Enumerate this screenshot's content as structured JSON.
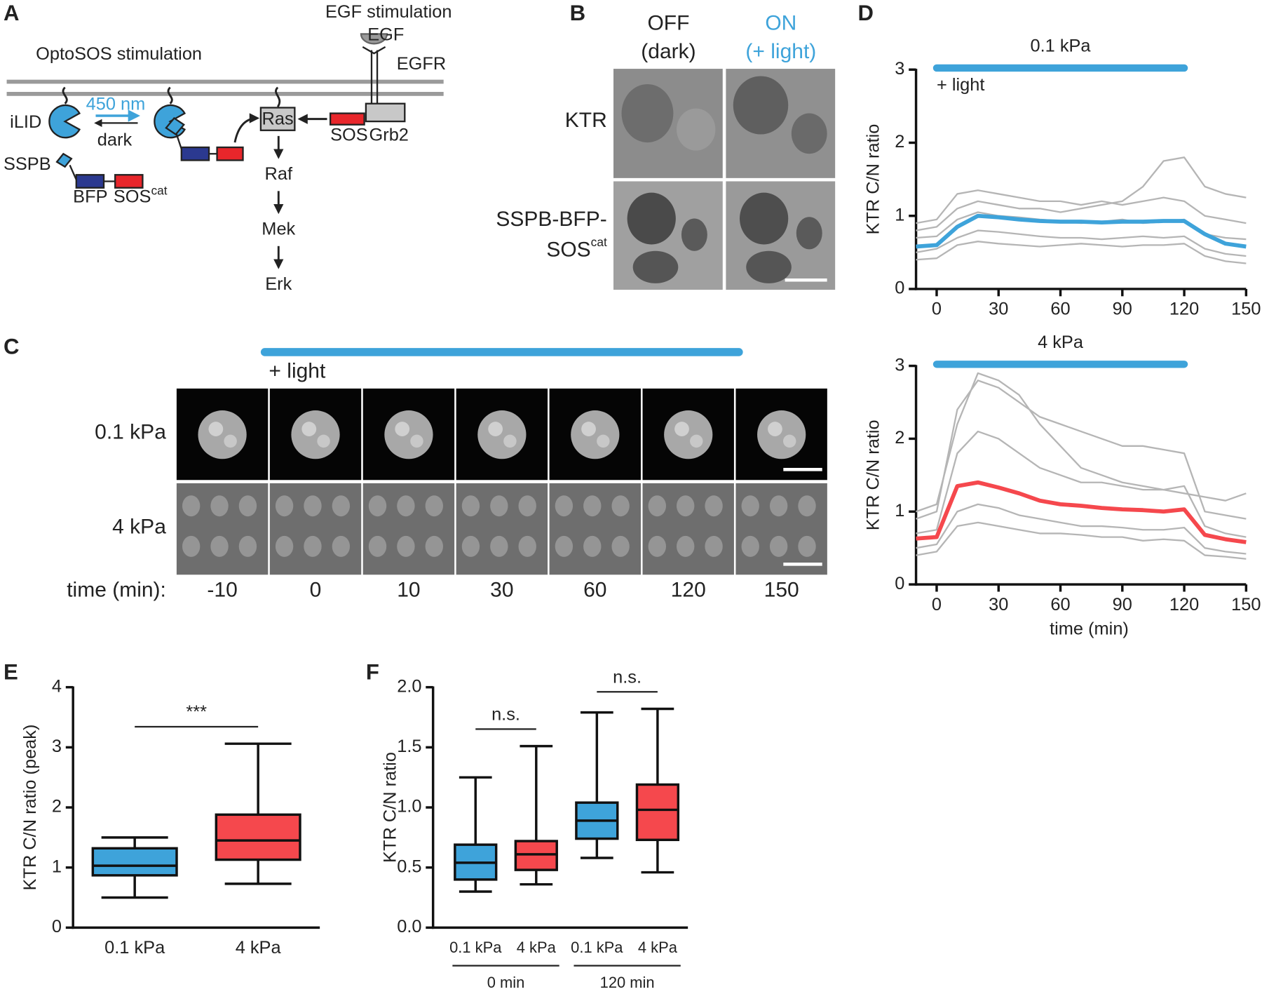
{
  "panel_labels": [
    "A",
    "B",
    "C",
    "D",
    "E",
    "F"
  ],
  "diagram": {
    "egf_stimulation": "EGF stimulation",
    "egf": "EGF",
    "egfr": "EGFR",
    "optosos_stimulation": "OptoSOS stimulation",
    "ilid": "iLID",
    "wavelength": "450 nm",
    "dark": "dark",
    "sspb": "SSPB",
    "bfp": "BFP",
    "sos": "SOS",
    "cat": "cat",
    "ras": "Ras",
    "sos2": "SOS",
    "grb2": "Grb2",
    "raf": "Raf",
    "mek": "Mek",
    "erk": "Erk"
  },
  "images_b": {
    "off": "OFF",
    "off_sub": "(dark)",
    "on": "ON",
    "on_sub": "(+ light)",
    "row1": "KTR",
    "row2a": "SSPB-BFP-",
    "row2b": "SOS",
    "row2_sup": "cat"
  },
  "timecourse_c": {
    "light": "+ light",
    "rows": [
      "0.1 kPa",
      "4 kPa"
    ],
    "time_label": "time (min):",
    "times": [
      -10,
      0,
      10,
      30,
      60,
      120,
      150
    ]
  },
  "chart_data": [
    {
      "type": "line",
      "title": "0.1 kPa",
      "annotation": "+ light",
      "ylabel": "KTR C/N ratio",
      "light_interval": [
        0,
        120
      ],
      "light_color": "#3ea3da",
      "x": [
        -10,
        0,
        10,
        20,
        30,
        40,
        50,
        60,
        70,
        80,
        90,
        100,
        110,
        120,
        130,
        140,
        150
      ],
      "series": [
        {
          "color": "#b5b5b5",
          "values": [
            0.8,
            0.85,
            1.1,
            1.2,
            1.15,
            1.1,
            1.1,
            1.05,
            1.1,
            1.15,
            1.2,
            1.4,
            1.75,
            1.8,
            1.4,
            1.3,
            1.25
          ]
        },
        {
          "color": "#b5b5b5",
          "values": [
            0.5,
            0.55,
            0.7,
            0.8,
            0.78,
            0.75,
            0.72,
            0.7,
            0.7,
            0.68,
            0.7,
            0.72,
            0.7,
            0.72,
            0.55,
            0.48,
            0.45
          ]
        },
        {
          "color": "#b5b5b5",
          "values": [
            0.9,
            0.95,
            1.3,
            1.35,
            1.3,
            1.25,
            1.2,
            1.2,
            1.15,
            1.2,
            1.15,
            1.2,
            1.25,
            1.2,
            1.0,
            0.95,
            0.9
          ]
        },
        {
          "color": "#b5b5b5",
          "values": [
            0.4,
            0.42,
            0.6,
            0.65,
            0.62,
            0.6,
            0.58,
            0.6,
            0.62,
            0.6,
            0.58,
            0.6,
            0.6,
            0.62,
            0.45,
            0.38,
            0.35
          ]
        },
        {
          "color": "#b5b5b5",
          "values": [
            0.7,
            0.72,
            0.95,
            1.05,
            1.0,
            0.98,
            0.95,
            0.93,
            0.9,
            0.92,
            0.95,
            0.9,
            0.92,
            0.95,
            0.75,
            0.7,
            0.68
          ]
        },
        {
          "color": "#3ea3da",
          "values": [
            0.58,
            0.6,
            0.85,
            1.0,
            0.98,
            0.95,
            0.93,
            0.92,
            0.92,
            0.91,
            0.92,
            0.92,
            0.93,
            0.93,
            0.75,
            0.62,
            0.58
          ]
        }
      ],
      "xlim": [
        -10,
        150
      ],
      "xticks": [
        0,
        30,
        60,
        90,
        120,
        150
      ],
      "ylim": [
        0,
        3
      ],
      "yticks": [
        0,
        1,
        2,
        3
      ]
    },
    {
      "type": "line",
      "title": "4 kPa",
      "ylabel": "KTR C/N ratio",
      "xlabel": "time (min)",
      "light_interval": [
        0,
        120
      ],
      "light_color": "#3ea3da",
      "x": [
        -10,
        0,
        10,
        20,
        30,
        40,
        50,
        60,
        70,
        80,
        90,
        100,
        110,
        120,
        130,
        140,
        150
      ],
      "series": [
        {
          "color": "#b5b5b5",
          "values": [
            0.9,
            1.0,
            2.4,
            2.8,
            2.7,
            2.5,
            2.3,
            2.2,
            2.1,
            2.0,
            1.9,
            1.9,
            1.85,
            1.8,
            1.0,
            0.95,
            0.9
          ]
        },
        {
          "color": "#b5b5b5",
          "values": [
            0.5,
            0.55,
            1.0,
            1.1,
            1.05,
            0.95,
            0.9,
            0.85,
            0.8,
            0.8,
            0.78,
            0.75,
            0.75,
            0.78,
            0.5,
            0.45,
            0.42
          ]
        },
        {
          "color": "#b5b5b5",
          "values": [
            0.7,
            0.75,
            1.8,
            2.1,
            2.0,
            1.8,
            1.6,
            1.5,
            1.4,
            1.4,
            1.35,
            1.3,
            1.3,
            1.35,
            0.8,
            0.7,
            0.65
          ]
        },
        {
          "color": "#b5b5b5",
          "values": [
            0.4,
            0.45,
            0.8,
            0.85,
            0.8,
            0.75,
            0.7,
            0.7,
            0.68,
            0.65,
            0.65,
            0.6,
            0.62,
            0.6,
            0.4,
            0.38,
            0.35
          ]
        },
        {
          "color": "#b5b5b5",
          "values": [
            1.0,
            1.1,
            2.2,
            2.9,
            2.8,
            2.6,
            2.2,
            1.9,
            1.6,
            1.5,
            1.4,
            1.35,
            1.3,
            1.25,
            1.2,
            1.15,
            1.25
          ]
        },
        {
          "color": "#f5484d",
          "values": [
            0.63,
            0.65,
            1.35,
            1.4,
            1.33,
            1.25,
            1.15,
            1.1,
            1.08,
            1.05,
            1.03,
            1.02,
            1.0,
            1.03,
            0.68,
            0.62,
            0.58
          ]
        }
      ],
      "xlim": [
        -10,
        150
      ],
      "xticks": [
        0,
        30,
        60,
        90,
        120,
        150
      ],
      "ylim": [
        0,
        3
      ],
      "yticks": [
        0,
        1,
        2,
        3
      ]
    },
    {
      "type": "box",
      "ylabel": "KTR C/N ratio (peak)",
      "categories": [
        "0.1 kPa",
        "4 kPa"
      ],
      "boxes": [
        {
          "color": "#3ea3da",
          "min": 0.5,
          "q1": 0.87,
          "median": 1.03,
          "q3": 1.32,
          "max": 1.5
        },
        {
          "color": "#f5484d",
          "min": 0.73,
          "q1": 1.13,
          "median": 1.45,
          "q3": 1.88,
          "max": 3.06
        }
      ],
      "significance": [
        "***"
      ],
      "ylim": [
        0,
        4
      ],
      "yticks": [
        0,
        1,
        2,
        3,
        4
      ]
    },
    {
      "type": "box",
      "ylabel": "KTR C/N ratio",
      "categories": [
        "0.1 kPa",
        "4 kPa",
        "0.1 kPa",
        "4 kPa"
      ],
      "groups": [
        "0 min",
        "120 min"
      ],
      "boxes": [
        {
          "color": "#3ea3da",
          "min": 0.3,
          "q1": 0.4,
          "median": 0.54,
          "q3": 0.69,
          "max": 1.25
        },
        {
          "color": "#f5484d",
          "min": 0.36,
          "q1": 0.48,
          "median": 0.61,
          "q3": 0.72,
          "max": 1.51
        },
        {
          "color": "#3ea3da",
          "min": 0.58,
          "q1": 0.74,
          "median": 0.89,
          "q3": 1.04,
          "max": 1.79
        },
        {
          "color": "#f5484d",
          "min": 0.46,
          "q1": 0.73,
          "median": 0.98,
          "q3": 1.19,
          "max": 1.82
        }
      ],
      "significance": [
        "n.s.",
        "n.s."
      ],
      "ylim": [
        0,
        2
      ],
      "yticks": [
        {
          "value": 0,
          "label": "0.0"
        },
        {
          "value": 0.5,
          "label": "0.5"
        },
        {
          "value": 1,
          "label": "1.0"
        },
        {
          "value": 1.5,
          "label": "1.5"
        },
        {
          "value": 2,
          "label": "2.0"
        }
      ]
    }
  ]
}
